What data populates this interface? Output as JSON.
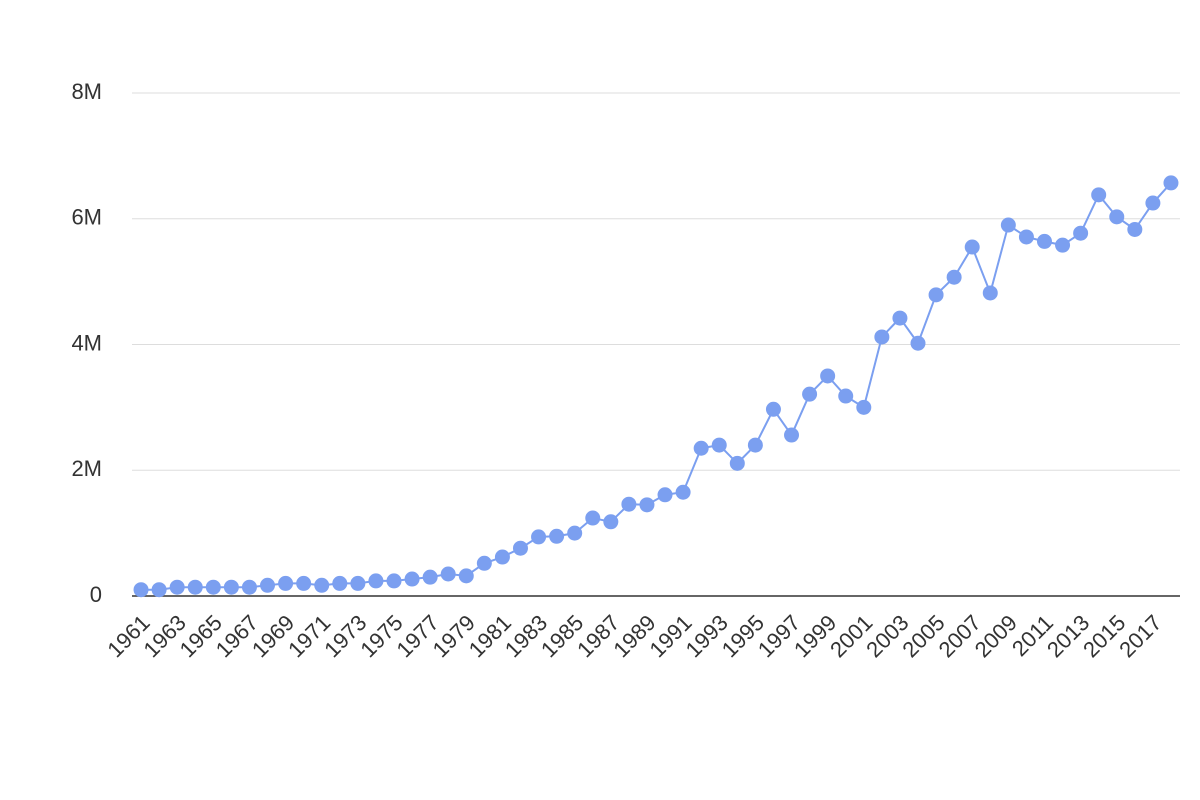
{
  "chart_data": {
    "type": "line",
    "color": "#7b9ff0",
    "grid": true,
    "x": [
      1961,
      1962,
      1963,
      1964,
      1965,
      1966,
      1967,
      1968,
      1969,
      1970,
      1971,
      1972,
      1973,
      1974,
      1975,
      1976,
      1977,
      1978,
      1979,
      1980,
      1981,
      1982,
      1983,
      1984,
      1985,
      1986,
      1987,
      1988,
      1989,
      1990,
      1991,
      1992,
      1993,
      1994,
      1995,
      1996,
      1997,
      1998,
      1999,
      2000,
      2001,
      2002,
      2003,
      2004,
      2005,
      2006,
      2007,
      2008,
      2009,
      2010,
      2011,
      2012,
      2013,
      2014,
      2015,
      2016,
      2017,
      2018
    ],
    "values": [
      100000,
      100000,
      140000,
      140000,
      140000,
      140000,
      140000,
      170000,
      200000,
      200000,
      170000,
      200000,
      200000,
      240000,
      240000,
      270000,
      300000,
      350000,
      320000,
      520000,
      620000,
      760000,
      940000,
      950000,
      1000000,
      1240000,
      1180000,
      1460000,
      1450000,
      1610000,
      1650000,
      2350000,
      2400000,
      2110000,
      2400000,
      2970000,
      2560000,
      3210000,
      3500000,
      3180000,
      3000000,
      4120000,
      4420000,
      4020000,
      4790000,
      5070000,
      5550000,
      4820000,
      5900000,
      5710000,
      5640000,
      5580000,
      5770000,
      6380000,
      6030000,
      5830000,
      6250000,
      6570000
    ],
    "xlim": [
      1960.5,
      2018.5
    ],
    "xticks": [
      1961,
      1963,
      1965,
      1967,
      1969,
      1971,
      1973,
      1975,
      1977,
      1979,
      1981,
      1983,
      1985,
      1987,
      1989,
      1991,
      1993,
      1995,
      1997,
      1999,
      2001,
      2003,
      2005,
      2007,
      2009,
      2011,
      2013,
      2015,
      2017
    ],
    "ylim": [
      0,
      8000000
    ],
    "yticks": [
      0,
      {
        "value": 2000000,
        "label": "2M"
      },
      {
        "value": 4000000,
        "label": "4M"
      },
      {
        "value": 6000000,
        "label": "6M"
      },
      {
        "value": 8000000,
        "label": "8M"
      }
    ]
  }
}
